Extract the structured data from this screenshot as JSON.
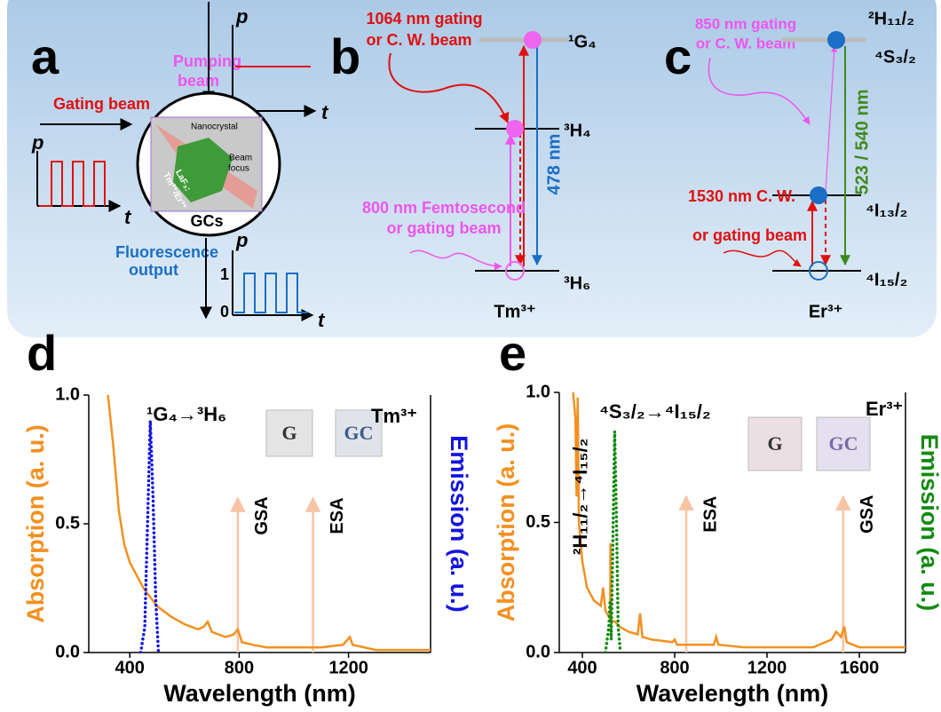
{
  "panel_a": {
    "label": "a",
    "pumping": [
      "Pumping",
      "beam"
    ],
    "gating": "Gating beam",
    "fluorescence": [
      "Fluorescence",
      "output"
    ],
    "sample": "GCs",
    "inset": {
      "nanocrystal": "Nanocrystal",
      "focus": [
        "Beam",
        "focus"
      ],
      "host": "LaF₃:",
      "ions": "Tm³⁺/Er³⁺"
    },
    "axis_p": "p",
    "axis_t": "t",
    "level_1": "1",
    "level_0": "0"
  },
  "panel_b": {
    "label": "b",
    "gating": [
      "1064 nm gating",
      "or C. W.  beam"
    ],
    "pump": [
      "800 nm Femtosecond",
      "or gating beam"
    ],
    "levels": [
      "¹G₄",
      "³H₄",
      "³H₆"
    ],
    "emission": "478 nm",
    "ion": "Tm³⁺"
  },
  "panel_c": {
    "label": "c",
    "gating": [
      "850 nm gating",
      "or C. W. beam"
    ],
    "cw": "1530 nm C. W.",
    "gate": "or gating beam",
    "levels": [
      "²H₁₁/₂",
      "⁴S₃/₂",
      "⁴I₁₃/₂",
      "⁴I₁₅/₂"
    ],
    "emission": "523 / 540 nm",
    "ion": "Er³⁺"
  },
  "charts": [
    {
      "type": "line",
      "label": "d",
      "xlabel": "Wavelength (nm)",
      "ylabel": "Absorption (a. u.)",
      "y2label": "Emission (a. u.)",
      "xlim": [
        250,
        1500
      ],
      "ylim": [
        0,
        1
      ],
      "y2lim": [
        0,
        1
      ],
      "xticks": [
        400,
        800,
        1200
      ],
      "yticks": [
        {
          "value": 0,
          "label": "0.0"
        },
        0.5,
        {
          "value": 1,
          "label": "1.0"
        }
      ],
      "ion": "Tm³⁺",
      "transitions": [
        "¹G₄→³H₆"
      ],
      "inset_labels": [
        "G",
        "GC"
      ],
      "absorption": {
        "color": "#f39020",
        "x": [
          320,
          340,
          360,
          380,
          400,
          450,
          500,
          550,
          600,
          650,
          670,
          685,
          700,
          750,
          780,
          795,
          810,
          850,
          900,
          1000,
          1100,
          1180,
          1205,
          1215,
          1300,
          1500
        ],
        "values": [
          1.0,
          0.8,
          0.55,
          0.42,
          0.35,
          0.25,
          0.18,
          0.14,
          0.11,
          0.09,
          0.1,
          0.12,
          0.08,
          0.06,
          0.07,
          0.09,
          0.04,
          0.03,
          0.02,
          0.02,
          0.02,
          0.03,
          0.06,
          0.03,
          0.01,
          0.01
        ]
      },
      "emission": {
        "color": "#1414e0",
        "axis": "y2",
        "x": [
          440,
          455,
          465,
          475,
          485,
          495,
          505
        ],
        "values": [
          0,
          0.1,
          0.5,
          0.9,
          0.6,
          0.2,
          0
        ]
      },
      "arrows": [
        {
          "label": "GSA",
          "x": 795
        },
        {
          "label": "ESA",
          "x": 1070
        }
      ]
    },
    {
      "type": "line",
      "label": "e",
      "xlabel": "Wavelength (nm)",
      "ylabel": "Absorption (a. u.)",
      "y2label": "Emission (a. u.)",
      "xlim": [
        300,
        1800
      ],
      "ylim": [
        0,
        1
      ],
      "y2lim": [
        0,
        1
      ],
      "xticks": [
        400,
        800,
        1200,
        1600
      ],
      "yticks": [
        {
          "value": 0,
          "label": "0.0"
        },
        0.5,
        {
          "value": 1,
          "label": "1.0"
        }
      ],
      "ion": "Er³⁺",
      "transitions": [
        "⁴S₃/₂→⁴I₁₅/₂",
        "²H₁₁/₂→⁴I₁₅/₂"
      ],
      "inset_labels": [
        "G",
        "GC"
      ],
      "absorption": {
        "color": "#f39020",
        "x": [
          360,
          370,
          375,
          380,
          385,
          400,
          420,
          450,
          480,
          490,
          500,
          520,
          522,
          525,
          540,
          560,
          600,
          640,
          650,
          660,
          700,
          790,
          800,
          810,
          900,
          970,
          980,
          990,
          1100,
          1400,
          1480,
          1500,
          1520,
          1535,
          1545,
          1600,
          1800
        ],
        "values": [
          1.0,
          0.9,
          0.6,
          0.98,
          0.5,
          0.35,
          0.25,
          0.2,
          0.18,
          0.25,
          0.16,
          0.13,
          0.42,
          0.12,
          0.12,
          0.1,
          0.08,
          0.07,
          0.15,
          0.06,
          0.05,
          0.04,
          0.05,
          0.03,
          0.03,
          0.03,
          0.06,
          0.03,
          0.02,
          0.02,
          0.05,
          0.08,
          0.06,
          0.1,
          0.04,
          0.02,
          0.02
        ]
      },
      "emission": {
        "color": "#138a13",
        "axis": "y2",
        "x": [
          500,
          515,
          520,
          525,
          530,
          540,
          548,
          555,
          565
        ],
        "values": [
          0,
          0.1,
          0.2,
          0.05,
          0.3,
          0.85,
          0.5,
          0.1,
          0
        ]
      },
      "arrows": [
        {
          "label": "ESA",
          "x": 850
        },
        {
          "label": "GSA",
          "x": 1530
        }
      ]
    }
  ]
}
